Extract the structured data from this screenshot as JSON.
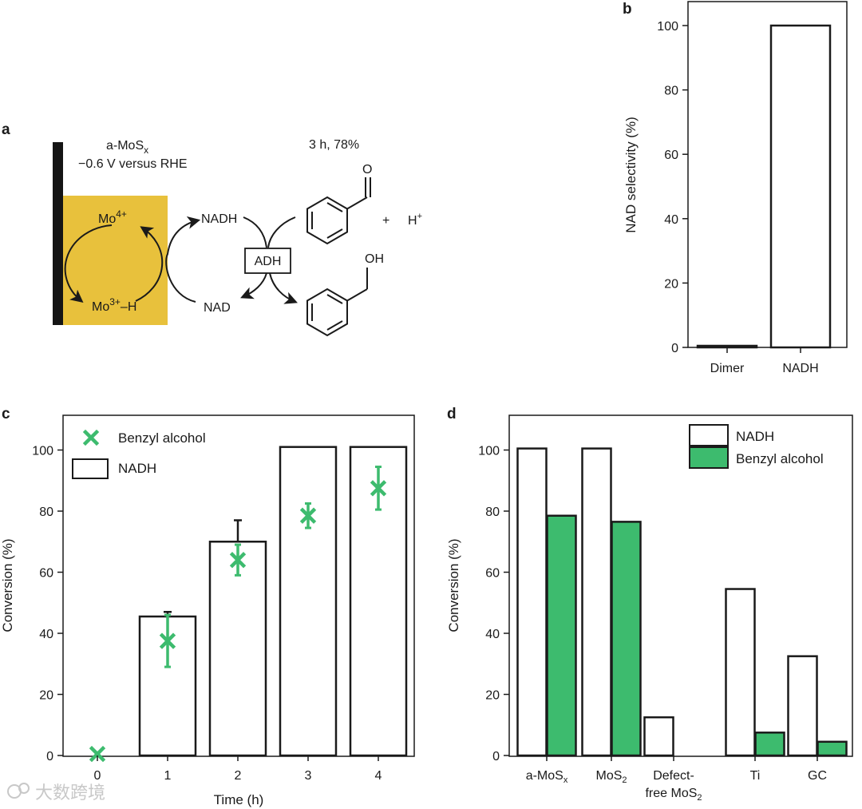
{
  "panels": {
    "a": {
      "letter": "a",
      "electrode": "a-MoS",
      "electrode_sub": "x",
      "potential": "−0.6 V versus RHE",
      "condition": "3 h, 78%",
      "mo4": "Mo",
      "mo4_sup": "4+",
      "mo3": "Mo",
      "mo3_sup": "3+",
      "mo3_suffix": "–H",
      "nadh": "NADH",
      "nad": "NAD",
      "enzyme": "ADH",
      "plus": "+",
      "proton": "H",
      "proton_sup": "+",
      "oxygen": "O",
      "hydroxyl": "OH"
    },
    "b": {
      "letter": "b"
    },
    "c": {
      "letter": "c"
    },
    "d": {
      "letter": "d"
    }
  },
  "chart_data": [
    {
      "id": "b",
      "type": "bar",
      "title": "",
      "xlabel": "",
      "ylabel": "NAD selectivity (%)",
      "categories": [
        "Dimer",
        "NADH"
      ],
      "values": [
        0.5,
        100
      ],
      "ylim": [
        0,
        105
      ],
      "yticks": [
        0,
        20,
        40,
        60,
        80,
        100
      ],
      "colors": {
        "bar_fill": "#ffffff",
        "bar_stroke": "#1a1a1a"
      }
    },
    {
      "id": "c",
      "type": "bar",
      "title": "",
      "xlabel": "Time (h)",
      "ylabel": "Conversion (%)",
      "categories": [
        "0",
        "1",
        "2",
        "3",
        "4"
      ],
      "ylim": [
        0,
        110
      ],
      "yticks": [
        0,
        20,
        40,
        60,
        80,
        100
      ],
      "series": [
        {
          "name": "NADH",
          "kind": "bar",
          "values": [
            0,
            45.5,
            70,
            101,
            101
          ],
          "err_up": [
            0,
            1.5,
            7,
            0,
            0
          ]
        },
        {
          "name": "Benzyl alcohol",
          "kind": "marker",
          "values": [
            0.5,
            37.5,
            64,
            78.5,
            87.5
          ],
          "err": [
            0,
            8.5,
            5,
            4,
            7
          ]
        }
      ],
      "legend": [
        "Benzyl alcohol",
        "NADH"
      ],
      "colors": {
        "green": "#3dbb6e",
        "bar_fill": "#ffffff",
        "bar_stroke": "#1a1a1a"
      }
    },
    {
      "id": "d",
      "type": "bar",
      "title": "",
      "xlabel": "",
      "ylabel": "Conversion (%)",
      "categories": [
        {
          "main": "a-MoS",
          "sub": "x"
        },
        {
          "main": "MoS",
          "sub": "2"
        },
        {
          "line1": "Defect-",
          "line2": "free MoS",
          "sub": "2"
        },
        {
          "main": "Ti"
        },
        {
          "main": "GC"
        }
      ],
      "ylim": [
        0,
        110
      ],
      "yticks": [
        0,
        20,
        40,
        60,
        80,
        100
      ],
      "series": [
        {
          "name": "NADH",
          "values": [
            100.5,
            100.5,
            12.5,
            54.5,
            32.5
          ]
        },
        {
          "name": "Benzyl alcohol",
          "values": [
            78.5,
            76.5,
            0,
            7.5,
            4.5
          ]
        }
      ],
      "legend": [
        "NADH",
        "Benzyl alcohol"
      ],
      "colors": {
        "nadh_fill": "#ffffff",
        "benzyl_fill": "#3dbb6e",
        "bar_stroke": "#1a1a1a"
      }
    }
  ],
  "watermark": "大数跨境"
}
